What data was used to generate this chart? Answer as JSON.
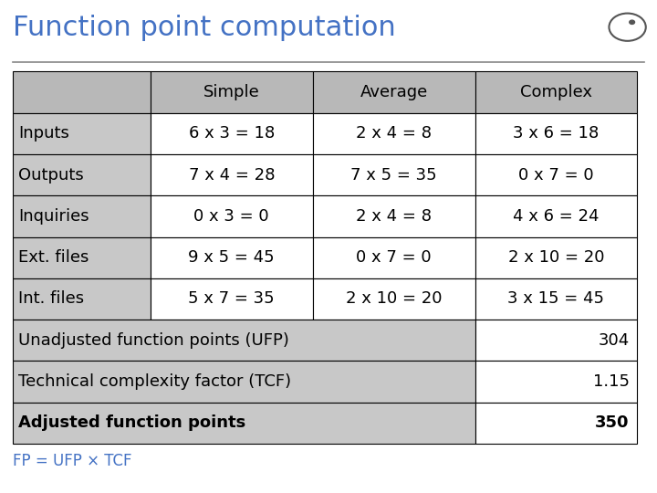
{
  "title": "Function point computation",
  "title_color": "#4472c4",
  "title_fontsize": 22,
  "background_color": "#ffffff",
  "header_row": [
    "",
    "Simple",
    "Average",
    "Complex"
  ],
  "rows": [
    [
      "Inputs",
      "6 x 3 = 18",
      "2 x 4 = 8",
      "3 x 6 = 18"
    ],
    [
      "Outputs",
      "7 x 4 = 28",
      "7 x 5 = 35",
      "0 x 7 = 0"
    ],
    [
      "Inquiries",
      "0 x 3 = 0",
      "2 x 4 = 8",
      "4 x 6 = 24"
    ],
    [
      "Ext. files",
      "9 x 5 = 45",
      "0 x 7 = 0",
      "2 x 10 = 20"
    ],
    [
      "Int. files",
      "5 x 7 = 35",
      "2 x 10 = 20",
      "3 x 15 = 45"
    ]
  ],
  "summary_rows": [
    [
      "Unadjusted function points (UFP)",
      "304"
    ],
    [
      "Technical complexity factor (TCF)",
      "1.15"
    ],
    [
      "Adjusted function points",
      "350"
    ]
  ],
  "cell_bg_header": "#b8b8b8",
  "cell_bg_label": "#c8c8c8",
  "cell_bg_data": "#ffffff",
  "cell_bg_summary_label": "#c8c8c8",
  "cell_bg_summary_value": "#ffffff",
  "border_color": "#000000",
  "text_color": "#000000",
  "table_fontsize": 13,
  "subtitle_text": "FP = UFP × TCF",
  "subtitle_color": "#4472c4",
  "hrule_color": "#888888"
}
